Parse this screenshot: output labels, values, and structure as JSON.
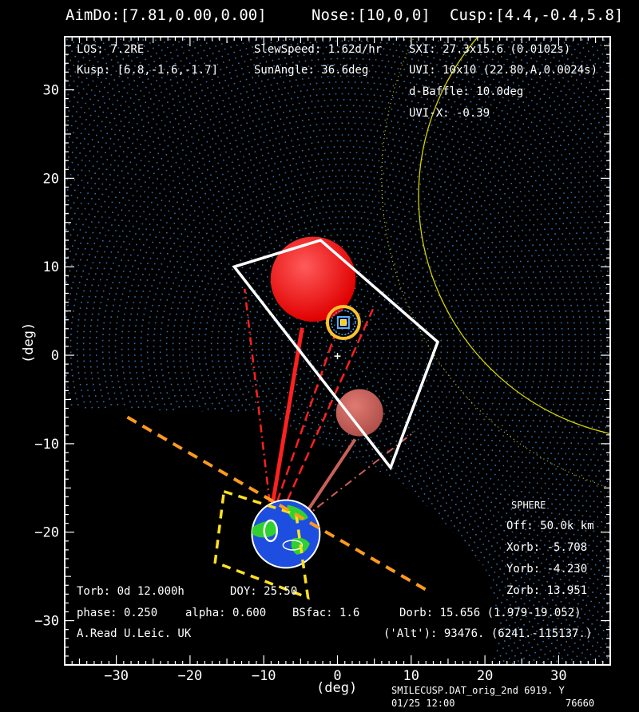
{
  "header": {
    "aim": "AimDo:[7.81,0.00,0.00]",
    "nose": "Nose:[10,0,0]",
    "cusp": "Cusp:[4.4,-0.4,5.8]"
  },
  "info": {
    "los": "LOS: 7.2RE",
    "kusp": "Kusp: [6.8,-1.6,-1.7]",
    "slew": "SlewSpeed: 1.62d/hr",
    "sun": "SunAngle: 36.6deg",
    "sxi": "SXI: 27.3x15.6 (0.0102s)",
    "uvi": "UVI: 10x10 (22.80,A,0.0024s)",
    "baffle": "d-Baffle: 10.0deg",
    "uvix": "UVI-X: -0.39"
  },
  "sphere": {
    "title": "SPHERE",
    "off": "Off: 50.0k km",
    "xorb": "Xorb: -5.708",
    "yorb": "Yorb: -4.230",
    "zorb": "Zorb: 13.951"
  },
  "bottom": {
    "torb": "Torb: 0d 12.000h",
    "doy": "DOY: 25.50",
    "phase": "phase: 0.250",
    "alpha": "alpha: 0.600",
    "bsfac": "BSfac: 1.6",
    "dorb": "Dorb: 15.656 (1.979-19.052)",
    "credit": "A.Read U.Leic. UK",
    "alt": "('Alt'): 93476. (6241.-115137.)"
  },
  "footer": {
    "file": "SMILECUSP.DAT_orig_2nd 6919. Y",
    "date": "01/25 12:00",
    "code": "76660"
  },
  "colors": {
    "background": "#000000",
    "dots": "#2e6fb8",
    "fov_box": "#ffffff",
    "cusp_sphere": "#ff2020",
    "kusp_sphere": "#c86058",
    "horizon": "#ff9a1e",
    "earth_box": "#ffe020",
    "earth_ocean": "#1e4ee0",
    "earth_land": "#30d030",
    "sun_circle": "#d8d000"
  },
  "chart_data": {
    "type": "scatter",
    "title": "",
    "xlabel": "(deg)",
    "ylabel": "(deg)",
    "xlim": [
      -37,
      37
    ],
    "ylim": [
      -35,
      36
    ],
    "xticks": [
      -30,
      -20,
      -10,
      0,
      10,
      20,
      30
    ],
    "yticks": [
      -30,
      -20,
      -10,
      0,
      10,
      20,
      30
    ],
    "grid": false,
    "legend": "none",
    "fov_box": [
      [
        -14.0,
        10.0
      ],
      [
        -2.3,
        13.0
      ],
      [
        13.6,
        1.5
      ],
      [
        7.2,
        -12.7
      ]
    ],
    "uvi_box": [
      [
        -15.4,
        -15.4
      ],
      [
        -5.6,
        -18.0
      ],
      [
        -4.0,
        -27.4
      ],
      [
        -16.6,
        -23.4
      ]
    ],
    "horizon_line": [
      [
        -28.5,
        -7.0
      ],
      [
        12.0,
        -26.5
      ]
    ],
    "cusp_sphere": {
      "center": [
        -3.3,
        8.6
      ],
      "radius": 7.4
    },
    "kusp_sphere": {
      "center": [
        3.0,
        -6.5
      ],
      "radius": 3.2
    },
    "earth": {
      "center": [
        -7.0,
        -20.2
      ],
      "radius": 4.6
    },
    "sun_circle": {
      "center": [
        44.0,
        18.0
      ],
      "radius": 33.0
    },
    "nose_marker": [
      0.8,
      3.7
    ],
    "aim_marker": [
      0.0,
      -0.1
    ]
  }
}
